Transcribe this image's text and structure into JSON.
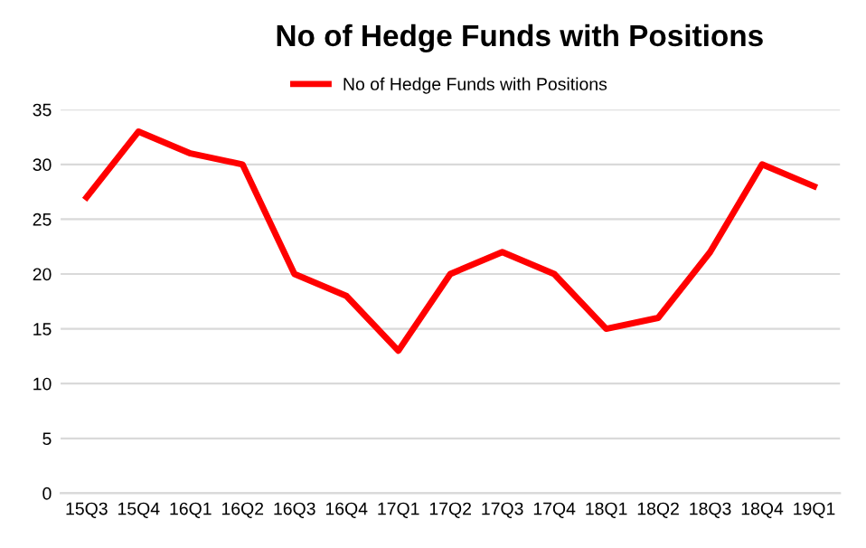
{
  "chart_data": {
    "type": "line",
    "title": "No of Hedge Funds with Positions",
    "categories": [
      "15Q3",
      "15Q4",
      "16Q1",
      "16Q2",
      "16Q3",
      "16Q4",
      "17Q1",
      "17Q2",
      "17Q3",
      "17Q4",
      "18Q1",
      "18Q2",
      "18Q3",
      "18Q4",
      "19Q1"
    ],
    "series": [
      {
        "name": "No of Hedge Funds with Positions",
        "color": "#ff0000",
        "values": [
          27,
          33,
          31,
          30,
          20,
          18,
          13,
          20,
          22,
          20,
          15,
          16,
          22,
          30,
          28
        ]
      }
    ],
    "ylim": [
      0,
      35
    ],
    "yticks": [
      0,
      5,
      10,
      15,
      20,
      25,
      30,
      35
    ],
    "grid": "y",
    "legend": "top",
    "marker": "none",
    "line_style": "solid"
  }
}
